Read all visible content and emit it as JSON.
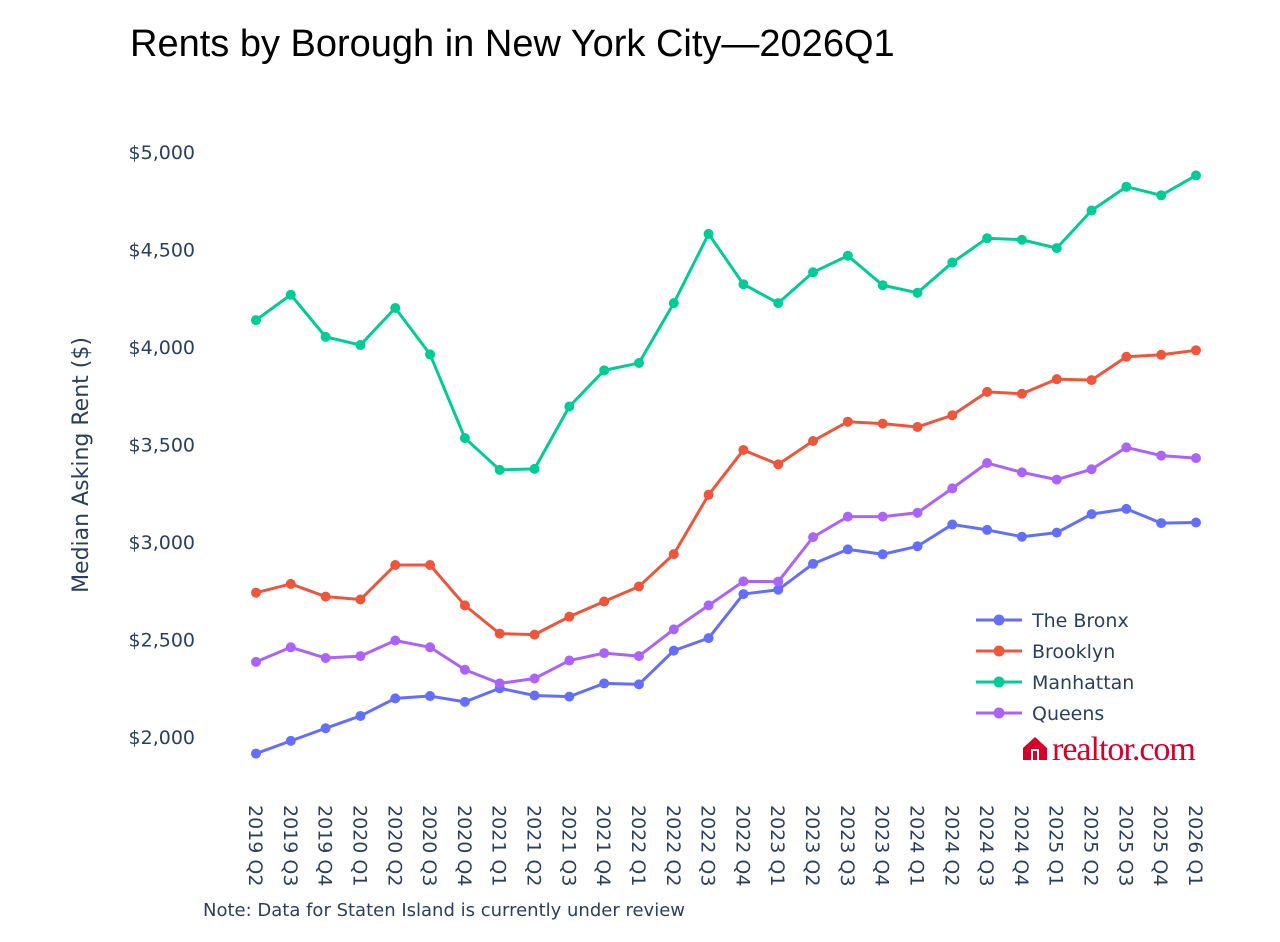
{
  "chart_data": {
    "type": "line",
    "title": "Rents by Borough in New York City—2026Q1",
    "xlabel": "",
    "ylabel": "Median Asking Rent ($)",
    "ylim": [
      1800,
      5150
    ],
    "yticks": [
      2000,
      2500,
      3000,
      3500,
      4000,
      4500,
      5000
    ],
    "ytick_labels": [
      "$2,000",
      "$2,500",
      "$3,000",
      "$3,500",
      "$4,000",
      "$4,500",
      "$5,000"
    ],
    "categories": [
      "2019 Q2",
      "2019 Q3",
      "2019 Q4",
      "2020 Q1",
      "2020 Q2",
      "2020 Q3",
      "2020 Q4",
      "2021 Q1",
      "2021 Q2",
      "2021 Q3",
      "2021 Q4",
      "2022 Q1",
      "2022 Q2",
      "2022 Q3",
      "2022 Q4",
      "2023 Q1",
      "2023 Q2",
      "2023 Q3",
      "2023 Q4",
      "2024 Q1",
      "2024 Q2",
      "2024 Q3",
      "2024 Q4",
      "2025 Q1",
      "2025 Q2",
      "2025 Q3",
      "2025 Q4",
      "2026 Q1"
    ],
    "grid": false,
    "legend_position": "bottom-right",
    "series": [
      {
        "name": "The Bronx",
        "color": "#636efa",
        "values": [
          1915,
          1980,
          2045,
          2108,
          2198,
          2210,
          2180,
          2250,
          2213,
          2207,
          2275,
          2270,
          2443,
          2507,
          2733,
          2755,
          2888,
          2962,
          2937,
          2978,
          3090,
          3062,
          3027,
          3048,
          3143,
          3170,
          3097,
          3100
        ]
      },
      {
        "name": "Brooklyn",
        "color": "#ef553b",
        "values": [
          2740,
          2785,
          2720,
          2705,
          2882,
          2882,
          2675,
          2530,
          2525,
          2617,
          2695,
          2772,
          2938,
          3242,
          3472,
          3398,
          3518,
          3617,
          3607,
          3590,
          3650,
          3770,
          3760,
          3835,
          3830,
          3950,
          3960,
          3983
        ]
      },
      {
        "name": "Manhattan",
        "color": "#00cc96",
        "values": [
          4138,
          4268,
          4052,
          4010,
          4200,
          3962,
          3533,
          3370,
          3375,
          3695,
          3880,
          3918,
          4225,
          4580,
          4322,
          4225,
          4383,
          4468,
          4317,
          4278,
          4433,
          4558,
          4550,
          4507,
          4700,
          4822,
          4778,
          4880
        ]
      },
      {
        "name": "Queens",
        "color": "#ab63fa",
        "values": [
          2385,
          2460,
          2405,
          2415,
          2495,
          2460,
          2345,
          2275,
          2300,
          2392,
          2430,
          2415,
          2552,
          2675,
          2798,
          2797,
          3025,
          3130,
          3130,
          3150,
          3275,
          3405,
          3357,
          3320,
          3373,
          3485,
          3443,
          3430
        ]
      }
    ]
  },
  "note": "Note: Data for Staten Island is currently under review",
  "brand": {
    "text": "realtor.com",
    "color": "#d6002a",
    "icon": "house-icon"
  }
}
